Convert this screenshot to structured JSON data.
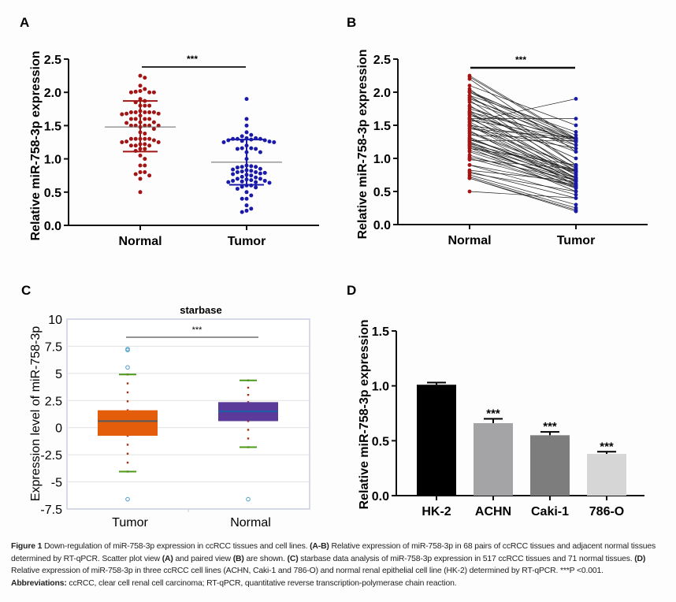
{
  "chart_data": [
    {
      "panel": "A",
      "type": "scatter",
      "ylabel": "Relative miR-758-3p expression",
      "xlabel": "",
      "categories": [
        "Normal",
        "Tumor"
      ],
      "ylim": [
        0,
        2.5
      ],
      "yticks": [
        "0.0",
        "0.5",
        "1.0",
        "1.5",
        "2.0",
        "2.5"
      ],
      "significance": "***",
      "series": [
        {
          "name": "Normal",
          "color": "#a11515",
          "mean": 1.48,
          "sd_upper": 1.87,
          "sd_lower": 1.11,
          "values": [
            2.25,
            2.22,
            2.1,
            2.05,
            2.02,
            2.0,
            2.0,
            2.0,
            2.01,
            1.9,
            1.87,
            1.85,
            1.8,
            1.8,
            1.8,
            1.72,
            1.7,
            1.7,
            1.7,
            1.7,
            1.7,
            1.68,
            1.68,
            1.67,
            1.65,
            1.6,
            1.6,
            1.6,
            1.6,
            1.55,
            1.55,
            1.54,
            1.5,
            1.5,
            1.5,
            1.5,
            1.5,
            1.48,
            1.45,
            1.4,
            1.38,
            1.3,
            1.3,
            1.3,
            1.3,
            1.3,
            1.28,
            1.26,
            1.25,
            1.25,
            1.22,
            1.22,
            1.2,
            1.2,
            1.2,
            1.15,
            1.15,
            1.12,
            1.05,
            1.0,
            0.9,
            0.9,
            0.8,
            0.8,
            0.77,
            0.75,
            0.7,
            0.5
          ]
        },
        {
          "name": "Tumor",
          "color": "#1a1aaa",
          "mean": 0.95,
          "sd_upper": 1.29,
          "sd_lower": 0.61,
          "values": [
            1.9,
            1.6,
            1.5,
            1.4,
            1.36,
            1.34,
            1.31,
            1.31,
            1.3,
            1.3,
            1.3,
            1.29,
            1.28,
            1.28,
            1.27,
            1.26,
            1.25,
            1.25,
            1.2,
            1.16,
            1.16,
            1.15,
            1.15,
            1.1,
            1.1,
            1.0,
            0.9,
            0.89,
            0.88,
            0.88,
            0.87,
            0.85,
            0.84,
            0.83,
            0.82,
            0.81,
            0.8,
            0.8,
            0.79,
            0.78,
            0.77,
            0.76,
            0.75,
            0.73,
            0.72,
            0.7,
            0.7,
            0.69,
            0.68,
            0.67,
            0.67,
            0.66,
            0.65,
            0.65,
            0.64,
            0.6,
            0.6,
            0.58,
            0.57,
            0.55,
            0.5,
            0.45,
            0.4,
            0.4,
            0.3,
            0.25,
            0.22,
            0.2
          ]
        }
      ]
    },
    {
      "panel": "B",
      "type": "line",
      "subtype": "paired",
      "ylabel": "Relative miR-758-3p expression",
      "categories": [
        "Normal",
        "Tumor"
      ],
      "ylim": [
        0,
        2.5
      ],
      "yticks": [
        "0.0",
        "0.5",
        "1.0",
        "1.5",
        "2.0",
        "2.5"
      ],
      "significance": "***",
      "normal_color": "#a11515",
      "tumor_color": "#1a1aaa",
      "line_color": "#222222",
      "pairs": [
        [
          2.25,
          1.3
        ],
        [
          2.23,
          1.28
        ],
        [
          2.2,
          1.1
        ],
        [
          2.1,
          1.5
        ],
        [
          2.05,
          0.9
        ],
        [
          2.02,
          1.3
        ],
        [
          2.0,
          1.25
        ],
        [
          2.0,
          1.35
        ],
        [
          1.95,
          0.9
        ],
        [
          1.92,
          1.2
        ],
        [
          1.9,
          1.3
        ],
        [
          1.88,
          0.8
        ],
        [
          1.85,
          1.28
        ],
        [
          1.8,
          0.85
        ],
        [
          1.78,
          1.15
        ],
        [
          1.72,
          1.0
        ],
        [
          1.7,
          0.8
        ],
        [
          1.7,
          1.3
        ],
        [
          1.68,
          0.75
        ],
        [
          1.67,
          1.1
        ],
        [
          1.65,
          1.2
        ],
        [
          1.62,
          0.7
        ],
        [
          1.6,
          1.6
        ],
        [
          1.6,
          0.85
        ],
        [
          1.58,
          1.3
        ],
        [
          1.55,
          0.75
        ],
        [
          1.55,
          1.9
        ],
        [
          1.52,
          0.7
        ],
        [
          1.5,
          1.25
        ],
        [
          1.5,
          0.65
        ],
        [
          1.48,
          0.88
        ],
        [
          1.45,
          1.15
        ],
        [
          1.42,
          0.6
        ],
        [
          1.4,
          0.8
        ],
        [
          1.38,
          0.78
        ],
        [
          1.35,
          1.3
        ],
        [
          1.32,
          0.65
        ],
        [
          1.3,
          0.7
        ],
        [
          1.3,
          0.72
        ],
        [
          1.28,
          0.82
        ],
        [
          1.27,
          1.27
        ],
        [
          1.25,
          0.66
        ],
        [
          1.24,
          0.55
        ],
        [
          1.22,
          0.8
        ],
        [
          1.2,
          0.6
        ],
        [
          1.2,
          0.7
        ],
        [
          1.18,
          0.62
        ],
        [
          1.16,
          0.5
        ],
        [
          1.15,
          0.9
        ],
        [
          1.12,
          0.68
        ],
        [
          1.1,
          0.58
        ],
        [
          1.05,
          0.55
        ],
        [
          1.02,
          0.67
        ],
        [
          1.0,
          0.57
        ],
        [
          0.98,
          0.84
        ],
        [
          0.9,
          0.6
        ],
        [
          0.9,
          0.45
        ],
        [
          0.82,
          0.65
        ],
        [
          0.8,
          0.4
        ],
        [
          0.78,
          0.5
        ],
        [
          0.75,
          0.3
        ],
        [
          0.72,
          0.25
        ],
        [
          0.7,
          0.22
        ],
        [
          0.7,
          0.2
        ],
        [
          0.5,
          0.4
        ],
        [
          1.95,
          1.4
        ],
        [
          1.75,
          1.26
        ],
        [
          1.45,
          1.31
        ]
      ]
    },
    {
      "panel": "C",
      "type": "box",
      "title": "starbase",
      "ylabel": "Expression level of miR-758-3p",
      "categories": [
        "Tumor",
        "Normal"
      ],
      "ylim": [
        -7.5,
        10
      ],
      "yticks": [
        "10",
        "7.5",
        "5",
        "2.5",
        "0",
        "-2.5",
        "-5",
        "-7.5"
      ],
      "ytick_values": [
        10,
        7.5,
        5,
        2.5,
        0,
        -2.5,
        -5,
        -7.5
      ],
      "grid": true,
      "significance": "***",
      "boxes": [
        {
          "name": "Tumor",
          "color": "#e35d0b",
          "median_color": "#5a5a5a",
          "q1": -0.75,
          "median": 0.6,
          "q3": 1.6,
          "whisker_low": -4.05,
          "whisker_high": 4.9,
          "outliers": [
            7.15,
            7.25,
            5.55,
            -6.6
          ]
        },
        {
          "name": "Normal",
          "color": "#5b3a9a",
          "median_color": "#1f5fa8",
          "q1": 0.6,
          "median": 1.5,
          "q3": 2.35,
          "whisker_low": -1.8,
          "whisker_high": 4.35,
          "outliers": [
            -6.6
          ]
        }
      ],
      "whisker_cap_color": "#4c9a1a",
      "whisker_dot_color": "#a0301a",
      "outlier_color": "#4a9ccc"
    },
    {
      "panel": "D",
      "type": "bar",
      "ylabel": "Relative miR-758-3p expression",
      "categories": [
        "HK-2",
        "ACHN",
        "Caki-1",
        "786-O"
      ],
      "values": [
        1.01,
        0.66,
        0.55,
        0.38
      ],
      "errors": [
        0.02,
        0.04,
        0.03,
        0.02
      ],
      "colors": [
        "#000000",
        "#a4a4a6",
        "#7d7d7d",
        "#d6d6d6"
      ],
      "significance": [
        "",
        "***",
        "***",
        "***"
      ],
      "ylim": [
        0,
        1.5
      ],
      "yticks": [
        "0.0",
        "0.5",
        "1.0",
        "1.5"
      ]
    }
  ],
  "panel_labels": [
    "A",
    "B",
    "C",
    "D"
  ],
  "caption": {
    "figure_label": "Figure 1",
    "title": " Down-regulation of miR-758-3p expression in ccRCC tissues and cell lines. ",
    "ab_ref": "(A-B)",
    "text1": " Relative expression of miR-758-3p in 68 pairs of ccRCC tissues and adjacent normal tissues determined by RT-qPCR. Scatter plot view ",
    "a_ref": "(A)",
    "text2": " and paired view ",
    "b_ref": "(B)",
    "text3": " are shown. ",
    "c_ref": "(C)",
    "text4": " starbase data analysis of miR-758-3p expression in 517 ccRCC tissues and 71 normal tissues. ",
    "d_ref": "(D)",
    "text5": " Relative expression of miR-758-3p in three ccRCC cell lines (ACHN, Caki-1 and 786-O) and normal renal epithelial cell line (HK-2) determined by RT-qPCR. ***P <0.001.",
    "abbrev_label": "Abbreviations:",
    "abbrev_text": " ccRCC, clear cell renal cell carcinoma; RT-qPCR, quantitative reverse transcription-polymerase chain reaction."
  }
}
